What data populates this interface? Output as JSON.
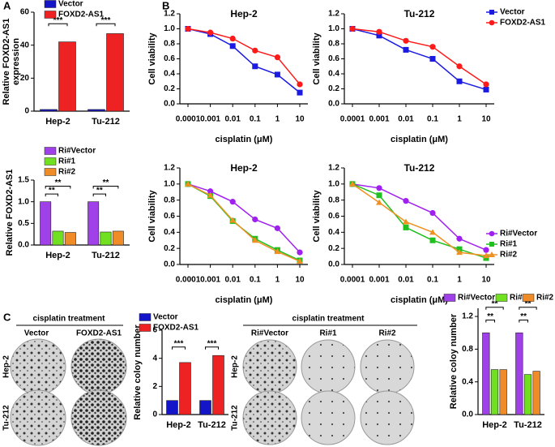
{
  "panel_labels": [
    "A",
    "B",
    "C"
  ],
  "colony_panels": [
    {
      "title": "cisplatin treatment",
      "columns": [
        "Vector",
        "FOXD2-AS1"
      ],
      "rows": [
        "Hep-2",
        "Tu-212"
      ]
    },
    {
      "title": "cisplatin treatment",
      "columns": [
        "Ri#Vector",
        "Ri#1",
        "Ri#2"
      ],
      "rows": [
        "Hep-2",
        "Tu-212"
      ]
    }
  ],
  "chart_data": [
    {
      "type": "bar",
      "ylabel": [
        "Relative FOXD2-AS1",
        "expression"
      ],
      "categories": [
        "Hep-2",
        "Tu-212"
      ],
      "series": [
        {
          "name": "Vector",
          "color": "#1414c8",
          "values": [
            1,
            1
          ]
        },
        {
          "name": "FOXD2-AS1",
          "color": "#ee2222",
          "values": [
            42,
            47
          ]
        }
      ],
      "ylim": [
        0,
        60
      ],
      "yticks": [
        0,
        20,
        40,
        60
      ],
      "legend": "upper left",
      "annotations": [
        "***",
        "***"
      ]
    },
    {
      "type": "bar",
      "ylabel": "Relative FOXD2-AS1",
      "categories": [
        "Hep-2",
        "Tu-212"
      ],
      "series": [
        {
          "name": "Ri#Vector",
          "color": "#a040e8",
          "values": [
            1.0,
            1.0
          ]
        },
        {
          "name": "Ri#1",
          "color": "#70e020",
          "values": [
            0.32,
            0.3
          ]
        },
        {
          "name": "Ri#2",
          "color": "#f08c28",
          "values": [
            0.29,
            0.32
          ]
        }
      ],
      "ylim": [
        0,
        1.5
      ],
      "yticks": [
        {
          "value": 0,
          "label": "0.0"
        },
        0.5,
        {
          "value": 1,
          "label": "1.0"
        },
        1.5
      ],
      "legend": "upper left",
      "annotations": [
        "**",
        "**",
        "**",
        "**"
      ]
    },
    {
      "type": "line",
      "title": "Hep-2",
      "xlabel": "cisplatin (μM)",
      "ylabel": "Cell viability",
      "log_x": true,
      "x": [
        0.0001,
        0.001,
        0.01,
        0.1,
        1,
        10
      ],
      "xlim": [
        0.0001,
        10
      ],
      "xticks": [
        0.0001,
        0.001,
        0.01,
        0.1,
        1,
        10
      ],
      "series": [
        {
          "name": "Vector",
          "color": "#1a1ae0",
          "marker": "square",
          "values": [
            1.0,
            0.93,
            0.77,
            0.5,
            0.39,
            0.15
          ]
        },
        {
          "name": "FOXD2-AS1",
          "color": "#ff1a1a",
          "marker": "circle",
          "values": [
            1.0,
            0.95,
            0.87,
            0.71,
            0.62,
            0.26
          ]
        }
      ],
      "ylim": [
        0,
        1.2
      ],
      "yticks": [
        {
          "value": 0,
          "label": "0.0"
        },
        0.2,
        0.4,
        0.6,
        0.8,
        {
          "value": 1,
          "label": "1.0"
        },
        1.2
      ]
    },
    {
      "type": "line",
      "title": "Tu-212",
      "xlabel": "cisplatin (μM)",
      "ylabel": "Cell viability",
      "log_x": true,
      "x": [
        0.0001,
        0.001,
        0.01,
        0.1,
        1,
        10
      ],
      "xlim": [
        0.0001,
        10
      ],
      "xticks": [
        0.0001,
        0.001,
        0.01,
        0.1,
        1,
        10
      ],
      "series": [
        {
          "name": "Vector",
          "color": "#1a1ae0",
          "marker": "square",
          "values": [
            1.0,
            0.91,
            0.72,
            0.6,
            0.3,
            0.19
          ]
        },
        {
          "name": "FOXD2-AS1",
          "color": "#ff1a1a",
          "marker": "circle",
          "values": [
            1.0,
            0.96,
            0.84,
            0.76,
            0.5,
            0.26
          ]
        }
      ],
      "ylim": [
        0,
        1.2
      ],
      "yticks": [
        {
          "value": 0,
          "label": "0.0"
        },
        0.2,
        0.4,
        0.6,
        0.8,
        {
          "value": 1,
          "label": "1.0"
        },
        1.2
      ],
      "legend": "upper right"
    },
    {
      "type": "line",
      "title": "Hep-2",
      "xlabel": "cisplatin (μM)",
      "ylabel": "Cell viability",
      "log_x": true,
      "x": [
        0.0001,
        0.001,
        0.01,
        0.1,
        1,
        10
      ],
      "xlim": [
        0.0001,
        10
      ],
      "xticks": [
        0.0001,
        0.001,
        0.01,
        0.1,
        1,
        10
      ],
      "series": [
        {
          "name": "Ri#Vector",
          "color": "#a020f0",
          "marker": "circle",
          "values": [
            1.0,
            0.91,
            0.78,
            0.56,
            0.45,
            0.15
          ]
        },
        {
          "name": "Ri#1",
          "color": "#20c020",
          "marker": "square",
          "values": [
            1.0,
            0.85,
            0.54,
            0.32,
            0.18,
            0.05
          ]
        },
        {
          "name": "Ri#2",
          "color": "#f09020",
          "marker": "triangle",
          "values": [
            1.0,
            0.86,
            0.55,
            0.3,
            0.16,
            0.04
          ]
        }
      ],
      "ylim": [
        0,
        1.2
      ],
      "yticks": [
        {
          "value": 0,
          "label": "0.0"
        },
        0.2,
        0.4,
        0.6,
        0.8,
        {
          "value": 1,
          "label": "1.0"
        },
        1.2
      ]
    },
    {
      "type": "line",
      "title": "Tu-212",
      "xlabel": "cisplatin (μM)",
      "ylabel": "Cell viability",
      "log_x": true,
      "x": [
        0.0001,
        0.001,
        0.01,
        0.1,
        1,
        10
      ],
      "xlim": [
        0.0001,
        10
      ],
      "xticks": [
        0.0001,
        0.001,
        0.01,
        0.1,
        1,
        10
      ],
      "series": [
        {
          "name": "Ri#Vector",
          "color": "#a020f0",
          "marker": "circle",
          "values": [
            1.0,
            0.95,
            0.79,
            0.64,
            0.32,
            0.18
          ]
        },
        {
          "name": "Ri#1",
          "color": "#20c020",
          "marker": "square",
          "values": [
            1.0,
            0.86,
            0.46,
            0.3,
            0.19,
            0.08
          ]
        },
        {
          "name": "Ri#2",
          "color": "#f09020",
          "marker": "triangle",
          "values": [
            1.0,
            0.77,
            0.53,
            0.4,
            0.15,
            0.11
          ]
        }
      ],
      "ylim": [
        0,
        1.2
      ],
      "yticks": [
        {
          "value": 0,
          "label": "0.0"
        },
        0.2,
        0.4,
        0.6,
        0.8,
        {
          "value": 1,
          "label": "1.0"
        },
        1.2
      ],
      "legend": "lower right"
    },
    {
      "type": "bar",
      "ylabel": "Relative coloy number",
      "categories": [
        "Hep-2",
        "Tu-212"
      ],
      "series": [
        {
          "name": "Vector",
          "color": "#1414c8",
          "values": [
            1.0,
            1.0
          ]
        },
        {
          "name": "FOXD2-AS1",
          "color": "#ee2222",
          "values": [
            3.7,
            4.2
          ]
        }
      ],
      "ylim": [
        0,
        6
      ],
      "yticks": [
        0,
        2,
        4,
        6
      ],
      "legend": "upper left",
      "annotations": [
        "***",
        "***"
      ]
    },
    {
      "type": "bar",
      "ylabel": "Relative coloy number",
      "categories": [
        "Hep-2",
        "Tu-212"
      ],
      "series": [
        {
          "name": "Ri#Vector",
          "color": "#a040e8",
          "values": [
            1.0,
            1.0
          ]
        },
        {
          "name": "Ri#1",
          "color": "#70e020",
          "values": [
            0.55,
            0.49
          ]
        },
        {
          "name": "Ri#2",
          "color": "#f08c28",
          "values": [
            0.55,
            0.53
          ]
        }
      ],
      "ylim": [
        0,
        1.3
      ],
      "yticks": [
        {
          "value": 0,
          "label": "0.0"
        },
        0.4,
        0.8,
        1.2
      ],
      "legend": "top",
      "annotations": [
        "**",
        "**",
        "**",
        "**"
      ]
    }
  ]
}
